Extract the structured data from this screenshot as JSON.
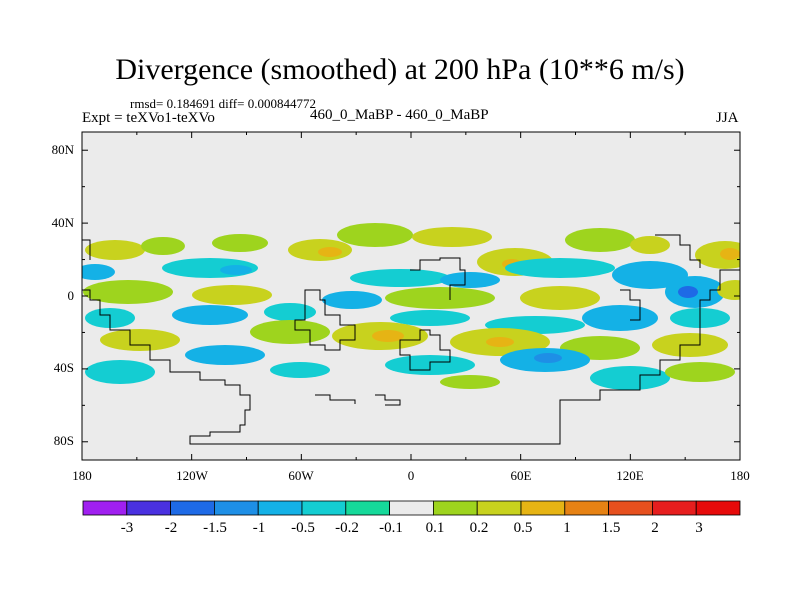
{
  "title": "Divergence (smoothed) at 200 hPa (10**6 m/s)",
  "stats_line": "rmsd= 0.184691 diff= 0.000844772",
  "left_subtitle": "Expt = teXVo1-teXVo",
  "center_subtitle": "460_0_MaBP - 460_0_MaBP",
  "right_subtitle": "JJA",
  "chart_data": {
    "type": "map-filled-contour",
    "field": "Divergence (smoothed) difference",
    "level": "200 hPa",
    "units": "10**6 m/s",
    "x_axis": {
      "range": [
        -180,
        180
      ],
      "ticks": [
        -180,
        -120,
        -60,
        0,
        60,
        120,
        180
      ],
      "tick_labels": [
        "180",
        "120W",
        "60W",
        "0",
        "60E",
        "120E",
        "180"
      ]
    },
    "y_axis": {
      "range": [
        -90,
        90
      ],
      "ticks": [
        -80,
        -40,
        0,
        40,
        80
      ],
      "tick_labels": [
        "80S",
        "40S",
        "0",
        "40N",
        "80N"
      ]
    },
    "colorbar": {
      "labels": [
        "-3",
        "-2",
        "-1.5",
        "-1",
        "-0.5",
        "-0.2",
        "-0.1",
        "0.1",
        "0.2",
        "0.5",
        "1",
        "1.5",
        "2",
        "3"
      ],
      "colors": [
        "#a020f0",
        "#4a31e0",
        "#1e6ae6",
        "#1e8fe6",
        "#14b1e6",
        "#14cdd2",
        "#16d99a",
        "#ebebeb",
        "#9ed41e",
        "#c8d21e",
        "#e6b414",
        "#e68214",
        "#e6501e",
        "#e61e1e",
        "#e60a0a"
      ]
    },
    "features": [
      {
        "name": "tropical-belt",
        "lat_range": [
          -25,
          35
        ],
        "lon_range": [
          -180,
          180
        ],
        "pattern": "alternating positive (green-yellow) and negative (cyan-blue) bands"
      },
      {
        "name": "northern-band",
        "lat_range": [
          20,
          35
        ],
        "sign": "mixed",
        "max_value": 0.5
      },
      {
        "name": "southern-band",
        "lat_range": [
          -30,
          -10
        ],
        "sign": "mixed",
        "max_value": 1
      },
      {
        "name": "pacific-negative-core",
        "lat": 0,
        "lon": 150,
        "sign": "negative",
        "min_value": -1
      },
      {
        "name": "high-latitudes",
        "lat_range": [
          -90,
          -50
        ],
        "note": "near zero (gray)"
      }
    ]
  }
}
